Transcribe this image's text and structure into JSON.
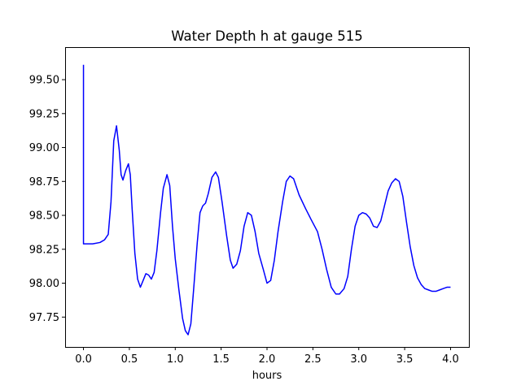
{
  "chart_data": {
    "type": "line",
    "title": "Water Depth h at gauge 515",
    "xlabel": "hours",
    "ylabel": "",
    "xlim": [
      -0.2,
      4.2
    ],
    "ylim": [
      97.53,
      99.74
    ],
    "grid": false,
    "x_ticks": [
      {
        "value": 0.0,
        "label": "0.0"
      },
      {
        "value": 0.5,
        "label": "0.5"
      },
      {
        "value": 1.0,
        "label": "1.0"
      },
      {
        "value": 1.5,
        "label": "1.5"
      },
      {
        "value": 2.0,
        "label": "2.0"
      },
      {
        "value": 2.5,
        "label": "2.5"
      },
      {
        "value": 3.0,
        "label": "3.0"
      },
      {
        "value": 3.5,
        "label": "3.5"
      },
      {
        "value": 4.0,
        "label": "4.0"
      }
    ],
    "y_ticks": [
      {
        "value": 97.75,
        "label": "97.75"
      },
      {
        "value": 98.0,
        "label": "98.00"
      },
      {
        "value": 98.25,
        "label": "98.25"
      },
      {
        "value": 98.5,
        "label": "98.50"
      },
      {
        "value": 98.75,
        "label": "98.75"
      },
      {
        "value": 99.0,
        "label": "99.00"
      },
      {
        "value": 99.25,
        "label": "99.25"
      },
      {
        "value": 99.5,
        "label": "99.50"
      }
    ],
    "series": [
      {
        "name": "",
        "color": "#0000ff",
        "points": [
          [
            0.0,
            99.61
          ],
          [
            0.0,
            98.29
          ],
          [
            0.1,
            98.29
          ],
          [
            0.18,
            98.3
          ],
          [
            0.23,
            98.32
          ],
          [
            0.27,
            98.36
          ],
          [
            0.3,
            98.6
          ],
          [
            0.33,
            99.05
          ],
          [
            0.36,
            99.16
          ],
          [
            0.39,
            98.98
          ],
          [
            0.41,
            98.8
          ],
          [
            0.43,
            98.76
          ],
          [
            0.46,
            98.83
          ],
          [
            0.49,
            98.88
          ],
          [
            0.51,
            98.8
          ],
          [
            0.53,
            98.55
          ],
          [
            0.56,
            98.22
          ],
          [
            0.59,
            98.03
          ],
          [
            0.62,
            97.97
          ],
          [
            0.65,
            98.02
          ],
          [
            0.68,
            98.07
          ],
          [
            0.71,
            98.06
          ],
          [
            0.74,
            98.03
          ],
          [
            0.77,
            98.08
          ],
          [
            0.8,
            98.24
          ],
          [
            0.84,
            98.52
          ],
          [
            0.87,
            98.7
          ],
          [
            0.91,
            98.8
          ],
          [
            0.94,
            98.72
          ],
          [
            0.97,
            98.42
          ],
          [
            1.0,
            98.18
          ],
          [
            1.04,
            97.95
          ],
          [
            1.08,
            97.74
          ],
          [
            1.11,
            97.65
          ],
          [
            1.14,
            97.62
          ],
          [
            1.17,
            97.7
          ],
          [
            1.2,
            97.95
          ],
          [
            1.24,
            98.3
          ],
          [
            1.27,
            98.52
          ],
          [
            1.3,
            98.57
          ],
          [
            1.33,
            98.59
          ],
          [
            1.36,
            98.66
          ],
          [
            1.4,
            98.78
          ],
          [
            1.44,
            98.82
          ],
          [
            1.47,
            98.78
          ],
          [
            1.51,
            98.6
          ],
          [
            1.56,
            98.35
          ],
          [
            1.6,
            98.17
          ],
          [
            1.63,
            98.11
          ],
          [
            1.67,
            98.14
          ],
          [
            1.71,
            98.24
          ],
          [
            1.75,
            98.42
          ],
          [
            1.79,
            98.52
          ],
          [
            1.83,
            98.5
          ],
          [
            1.87,
            98.38
          ],
          [
            1.91,
            98.22
          ],
          [
            1.96,
            98.1
          ],
          [
            2.0,
            98.0
          ],
          [
            2.04,
            98.02
          ],
          [
            2.08,
            98.17
          ],
          [
            2.12,
            98.38
          ],
          [
            2.17,
            98.6
          ],
          [
            2.21,
            98.75
          ],
          [
            2.25,
            98.79
          ],
          [
            2.29,
            98.77
          ],
          [
            2.35,
            98.65
          ],
          [
            2.42,
            98.55
          ],
          [
            2.48,
            98.47
          ],
          [
            2.55,
            98.38
          ],
          [
            2.6,
            98.25
          ],
          [
            2.65,
            98.1
          ],
          [
            2.7,
            97.97
          ],
          [
            2.75,
            97.92
          ],
          [
            2.79,
            97.92
          ],
          [
            2.84,
            97.96
          ],
          [
            2.88,
            98.05
          ],
          [
            2.92,
            98.25
          ],
          [
            2.96,
            98.42
          ],
          [
            3.0,
            98.5
          ],
          [
            3.04,
            98.52
          ],
          [
            3.08,
            98.51
          ],
          [
            3.12,
            98.48
          ],
          [
            3.16,
            98.42
          ],
          [
            3.2,
            98.41
          ],
          [
            3.24,
            98.46
          ],
          [
            3.28,
            98.57
          ],
          [
            3.32,
            98.68
          ],
          [
            3.36,
            98.74
          ],
          [
            3.4,
            98.77
          ],
          [
            3.44,
            98.75
          ],
          [
            3.48,
            98.64
          ],
          [
            3.52,
            98.45
          ],
          [
            3.56,
            98.27
          ],
          [
            3.6,
            98.13
          ],
          [
            3.64,
            98.04
          ],
          [
            3.68,
            97.99
          ],
          [
            3.72,
            97.96
          ],
          [
            3.76,
            97.95
          ],
          [
            3.8,
            97.94
          ],
          [
            3.84,
            97.94
          ],
          [
            3.88,
            97.95
          ],
          [
            3.92,
            97.96
          ],
          [
            3.96,
            97.97
          ],
          [
            4.0,
            97.97
          ]
        ]
      }
    ]
  }
}
